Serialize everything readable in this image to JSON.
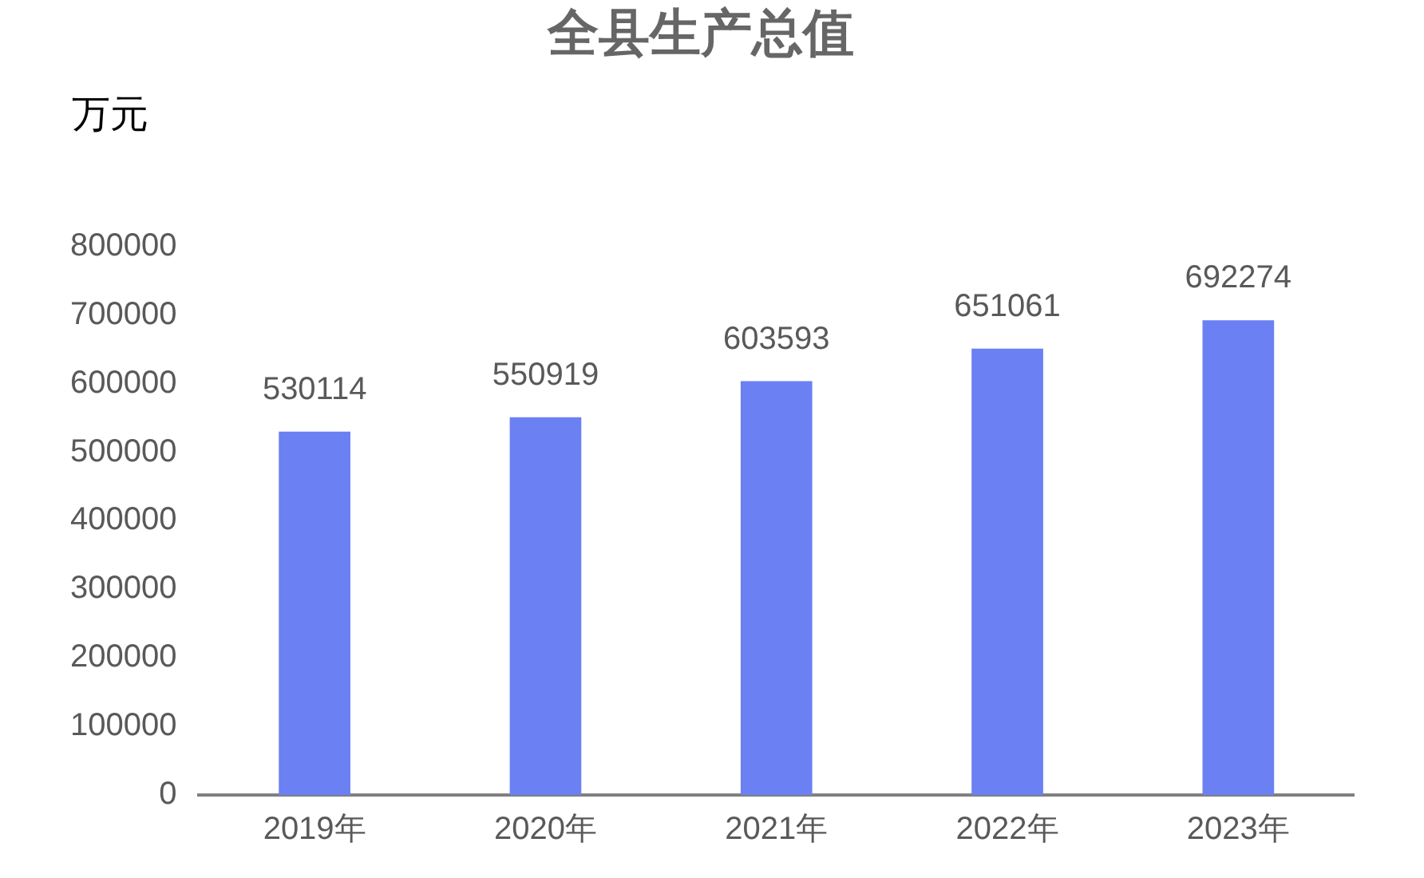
{
  "chart_data": {
    "type": "bar",
    "title": "全县生产总值",
    "ylabel": "万元",
    "categories": [
      "2019年",
      "2020年",
      "2021年",
      "2022年",
      "2023年"
    ],
    "values": [
      530114,
      550919,
      603593,
      651061,
      692274
    ],
    "color": "#6b80f3",
    "ylim": [
      0,
      800000
    ],
    "yticks": [
      0,
      100000,
      200000,
      300000,
      400000,
      500000,
      600000,
      700000,
      800000
    ],
    "data_labels": true
  }
}
